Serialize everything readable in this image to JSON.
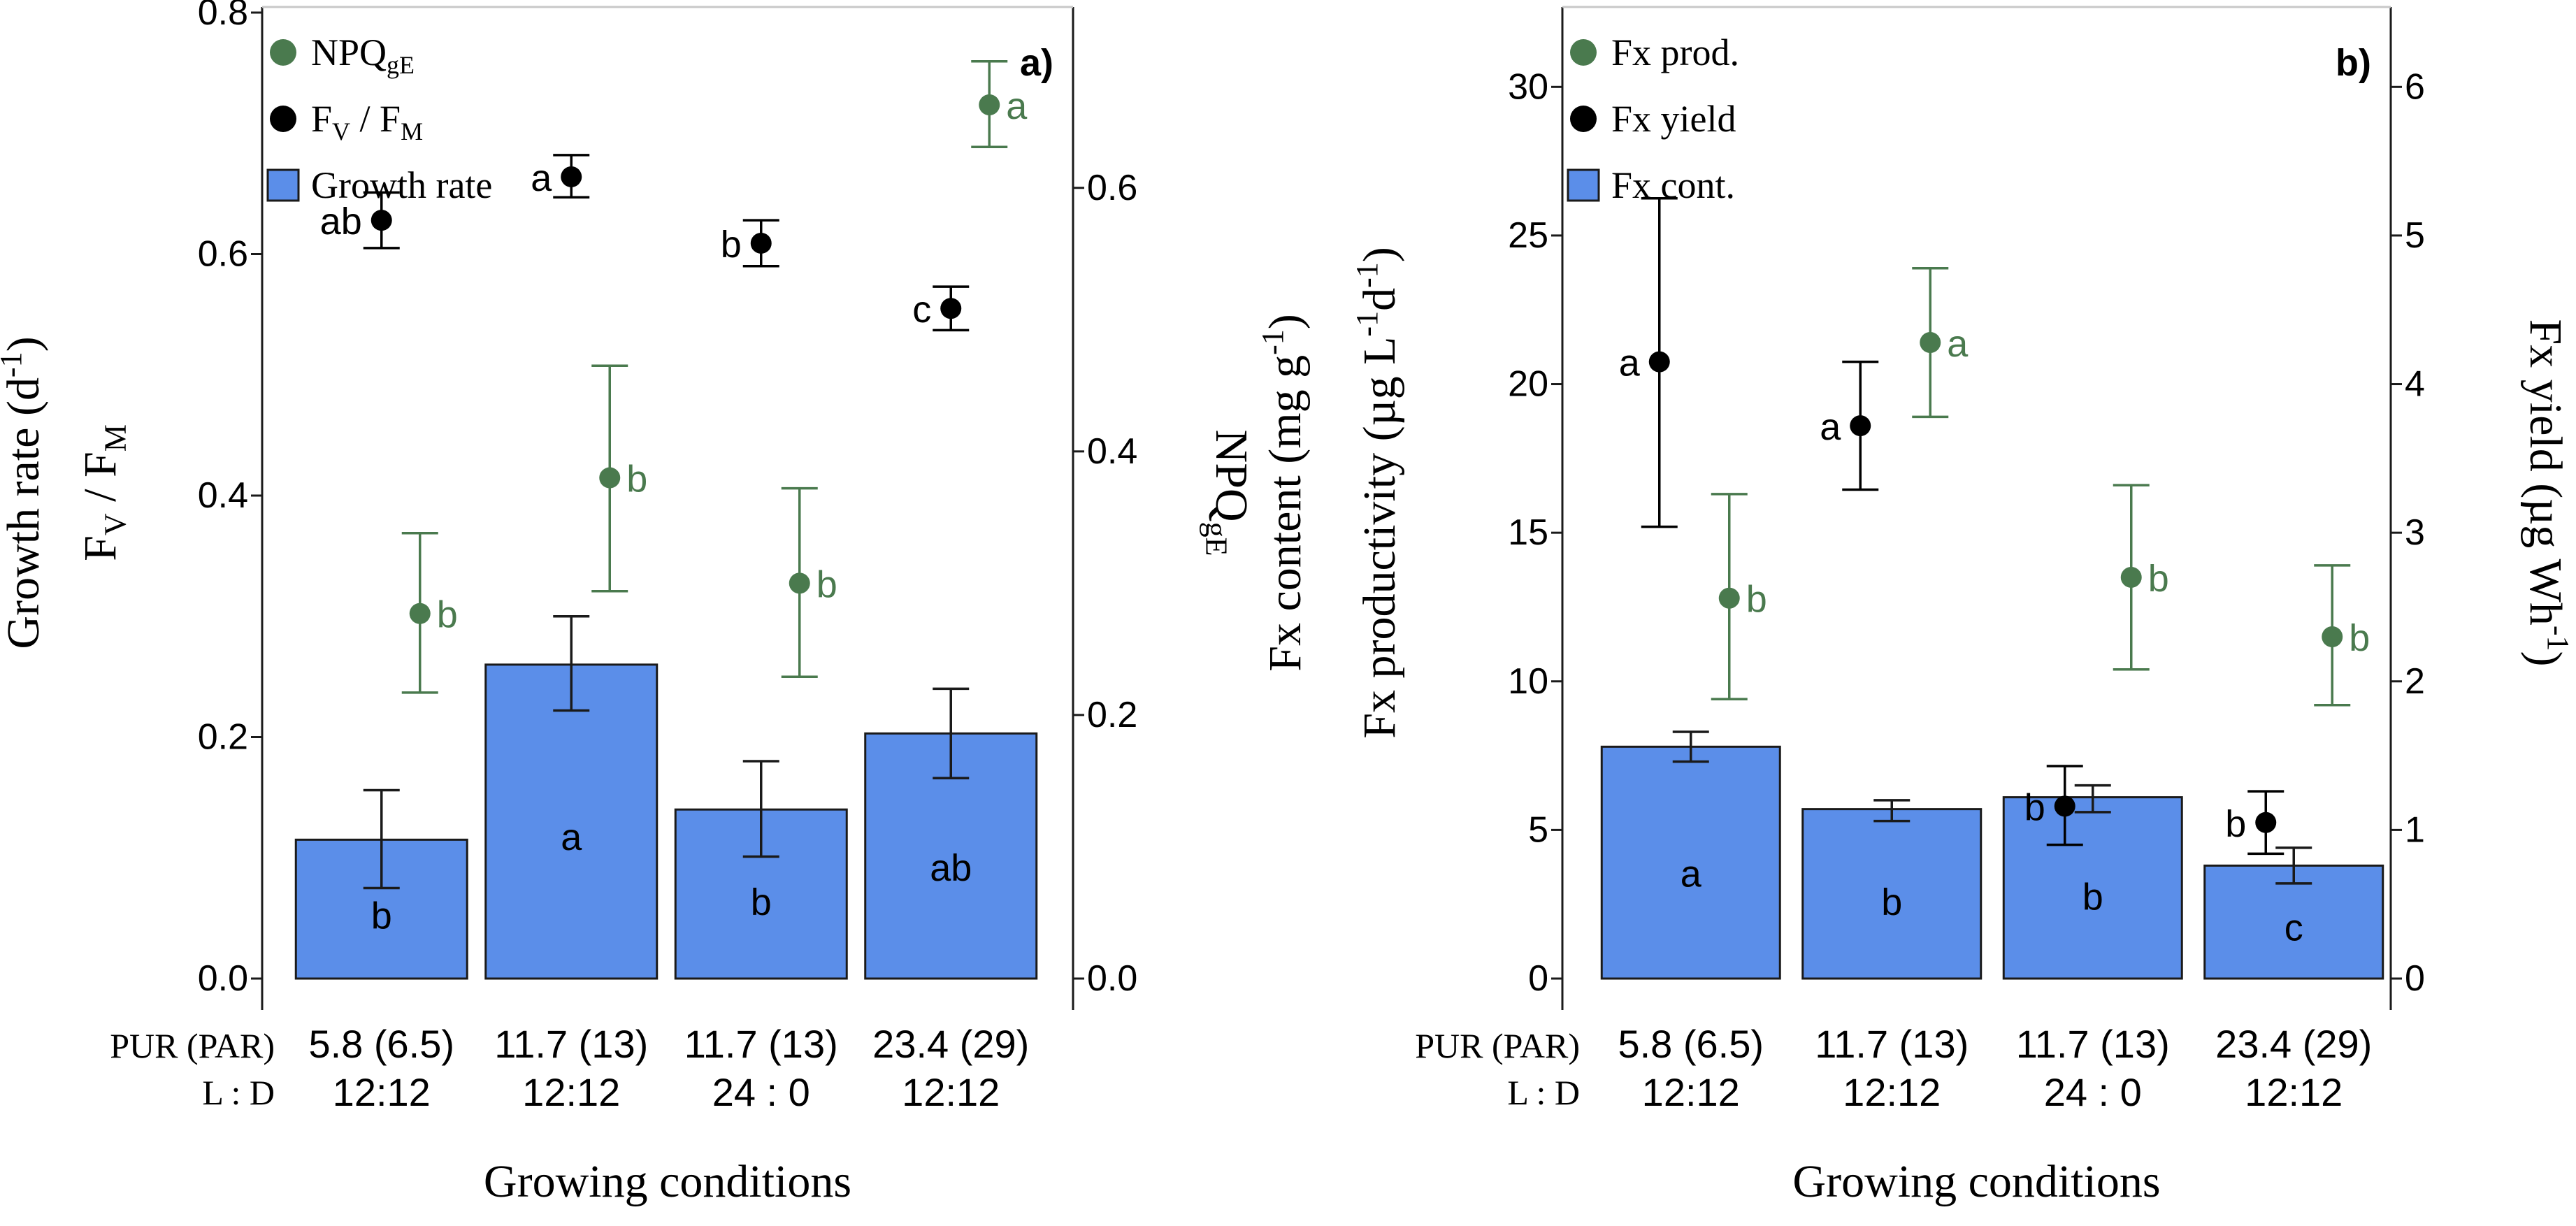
{
  "colors": {
    "bar_fill": "#5b8ee9",
    "bar_stroke": "#1a1a1a",
    "green": "#4a7a4e",
    "black": "#000000",
    "axis": "#1a1a1a"
  },
  "chart_data": [
    {
      "type": "bar",
      "panel_label": "a)",
      "categories": [
        "5.8 (6.5)|12:12",
        "11.7 (13)|12:12",
        "11.7 (13)|24 : 0",
        "23.4 (29)|12:12"
      ],
      "row_labels": [
        "PUR (PAR)",
        "L : D"
      ],
      "category_lines": [
        [
          "5.8 (6.5)",
          "12:12"
        ],
        [
          "11.7 (13)",
          "12:12"
        ],
        [
          "11.7 (13)",
          "24 : 0"
        ],
        [
          "23.4 (29)",
          "12:12"
        ]
      ],
      "xlabel": "Growing conditions",
      "ylabel_left": [
        "Growth rate (d",
        "-1",
        ")",
        "F",
        "V",
        " / F",
        "M"
      ],
      "ylabel_right": [
        "NPQ",
        "gE"
      ],
      "ylim_left": [
        0,
        0.8
      ],
      "yticks_left": [
        "0.0",
        "0.2",
        "0.4",
        "0.6",
        "0.8"
      ],
      "ylim_right": [
        0,
        0.733
      ],
      "yticks_right": [
        "0.0",
        "0.2",
        "0.4",
        "0.6"
      ],
      "legend": [
        {
          "kind": "green-dot",
          "text": "NPQ",
          "sub": "gE"
        },
        {
          "kind": "black-dot",
          "text": "F",
          "sub": "V",
          "text2": " / F",
          "sub2": "M"
        },
        {
          "kind": "bar",
          "text": "Growth rate"
        }
      ],
      "series": [
        {
          "name": "Growth rate",
          "kind": "bar",
          "axis": "left",
          "values": [
            0.115,
            0.26,
            0.14,
            0.203
          ],
          "err_low": [
            0.075,
            0.222,
            0.101,
            0.166
          ],
          "err_high": [
            0.156,
            0.3,
            0.18,
            0.24
          ],
          "letters": [
            "b",
            "a",
            "b",
            "ab"
          ]
        },
        {
          "name": "Fv / Fm",
          "kind": "black-dot",
          "axis": "left",
          "values": [
            0.628,
            0.664,
            0.609,
            0.555
          ],
          "err_low": [
            0.605,
            0.647,
            0.59,
            0.537
          ],
          "err_high": [
            0.651,
            0.682,
            0.628,
            0.573
          ],
          "letters": [
            "ab",
            "a",
            "b",
            "c"
          ]
        },
        {
          "name": "NPQgE",
          "kind": "green-dot",
          "axis": "right",
          "values": [
            0.277,
            0.38,
            0.3,
            0.663
          ],
          "err_low": [
            0.217,
            0.294,
            0.229,
            0.631
          ],
          "err_high": [
            0.338,
            0.465,
            0.372,
            0.696
          ],
          "letters": [
            "b",
            "b",
            "b",
            "a"
          ]
        }
      ]
    },
    {
      "type": "bar",
      "panel_label": "b)",
      "categories": [
        "5.8 (6.5)|12:12",
        "11.7 (13)|12:12",
        "11.7 (13)|24 : 0",
        "23.4 (29)|12:12"
      ],
      "row_labels": [
        "PUR (PAR)",
        "L : D"
      ],
      "category_lines": [
        [
          "5.8 (6.5)",
          "12:12"
        ],
        [
          "11.7 (13)",
          "12:12"
        ],
        [
          "11.7 (13)",
          "24 : 0"
        ],
        [
          "23.4 (29)",
          "12:12"
        ]
      ],
      "xlabel": "Growing conditions",
      "ylabel_left": [
        "Fx content (mg g",
        "-1",
        ")",
        "Fx productivity (µg L",
        "-1",
        "d",
        "-1",
        ")"
      ],
      "ylabel_right": [
        "Fx yield (µg Wh",
        "-1",
        ")"
      ],
      "ylim_left": [
        0,
        32.5
      ],
      "yticks_left": [
        "0",
        "5",
        "10",
        "15",
        "20",
        "25",
        "30"
      ],
      "ylim_right": [
        0,
        6.5
      ],
      "yticks_right": [
        "0",
        "1",
        "2",
        "3",
        "4",
        "5",
        "6"
      ],
      "legend": [
        {
          "kind": "green-dot",
          "text": "Fx prod."
        },
        {
          "kind": "black-dot",
          "text": "Fx yield"
        },
        {
          "kind": "bar",
          "text": "Fx cont."
        }
      ],
      "series": [
        {
          "name": "Fx cont.",
          "kind": "bar",
          "axis": "left",
          "values": [
            7.8,
            5.7,
            6.1,
            3.8
          ],
          "err_low": [
            7.3,
            5.3,
            5.6,
            3.2
          ],
          "err_high": [
            8.3,
            6.0,
            6.5,
            4.4
          ],
          "letters": [
            "a",
            "b",
            "b",
            "c"
          ]
        },
        {
          "name": "Fx yield",
          "kind": "black-dot",
          "axis": "right",
          "values": [
            4.15,
            3.72,
            1.16,
            1.05
          ],
          "err_low": [
            3.04,
            3.29,
            0.9,
            0.84
          ],
          "err_high": [
            5.25,
            4.15,
            1.43,
            1.26
          ],
          "letters": [
            "a",
            "a",
            "b",
            "b"
          ]
        },
        {
          "name": "Fx prod.",
          "kind": "green-dot",
          "axis": "left",
          "values": [
            12.8,
            21.4,
            13.5,
            11.5
          ],
          "err_low": [
            9.4,
            18.9,
            10.4,
            9.2
          ],
          "err_high": [
            16.3,
            23.9,
            16.6,
            13.9
          ],
          "letters": [
            "b",
            "a",
            "b",
            "b"
          ]
        }
      ]
    }
  ]
}
